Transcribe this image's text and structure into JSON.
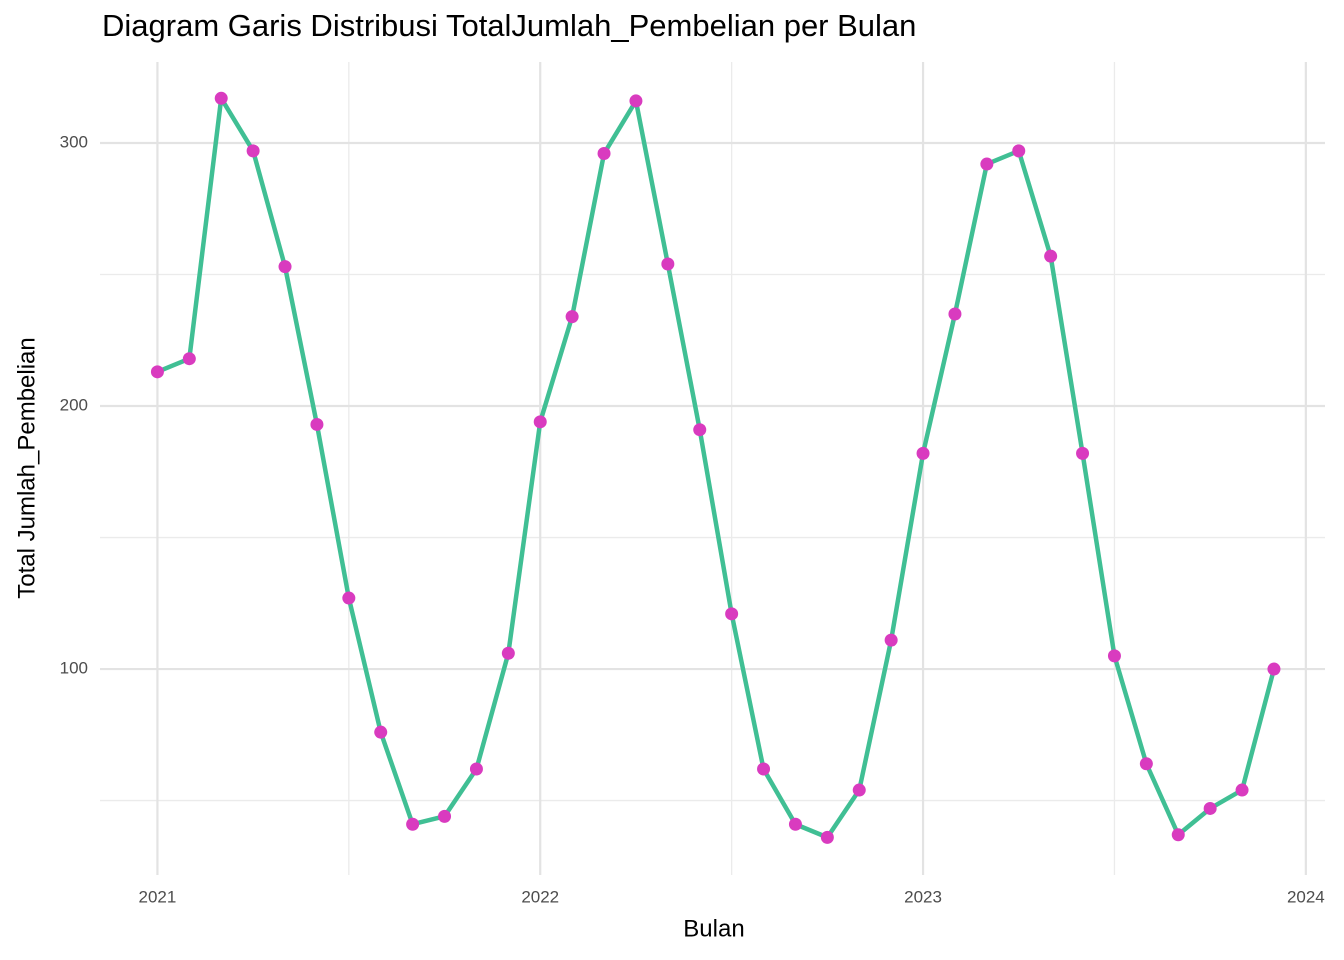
{
  "chart_data": {
    "type": "line",
    "title": "Diagram Garis Distribusi TotalJumlah_Pembelian per Bulan",
    "x_label": "Bulan",
    "y_label": "Total Jumlah_Pembelian",
    "x": [
      "2021-01",
      "2021-02",
      "2021-03",
      "2021-04",
      "2021-05",
      "2021-06",
      "2021-07",
      "2021-08",
      "2021-09",
      "2021-10",
      "2021-11",
      "2021-12",
      "2022-01",
      "2022-02",
      "2022-03",
      "2022-04",
      "2022-05",
      "2022-06",
      "2022-07",
      "2022-08",
      "2022-09",
      "2022-10",
      "2022-11",
      "2022-12",
      "2023-01",
      "2023-02",
      "2023-03",
      "2023-04",
      "2023-05",
      "2023-06",
      "2023-07",
      "2023-08",
      "2023-09",
      "2023-10",
      "2023-11",
      "2023-12"
    ],
    "series": [
      {
        "name": "TotalJumlah_Pembelian",
        "color": "#40bf94",
        "marker_color": "#d93bbf",
        "values": [
          213,
          218,
          317,
          297,
          253,
          193,
          127,
          76,
          41,
          44,
          62,
          106,
          194,
          234,
          296,
          316,
          254,
          191,
          121,
          62,
          41,
          36,
          54,
          111,
          182,
          235,
          292,
          297,
          257,
          182,
          105,
          64,
          37,
          47,
          54,
          100
        ]
      }
    ],
    "xlim": [
      2020.85,
      2024.05
    ],
    "xticks": [
      2021,
      2022,
      2023,
      2024
    ],
    "x_minor_ticks": [
      2021.5,
      2022.5,
      2023.5
    ],
    "ylim": [
      21.7,
      330.8
    ],
    "yticks": [
      100,
      200,
      300
    ],
    "y_minor_ticks": [
      50,
      150,
      250
    ],
    "grid": true
  }
}
